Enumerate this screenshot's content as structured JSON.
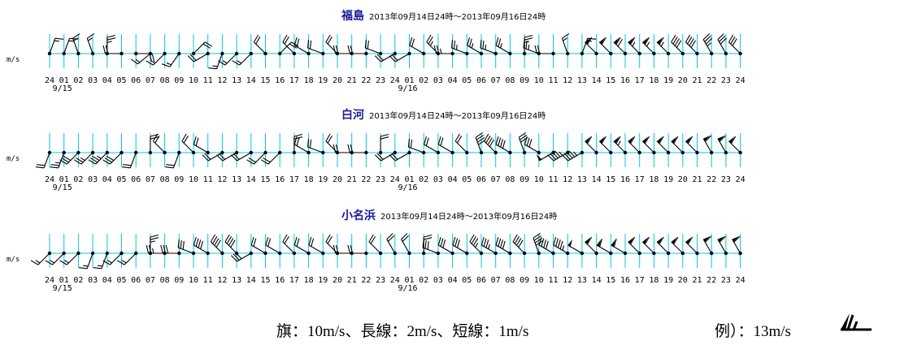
{
  "chart_data": {
    "type": "wind-barb",
    "unit": "m/s",
    "colors": {
      "grid": "#00c8e6",
      "barb": "#000000",
      "station": "#1a1a9a"
    },
    "tick_labels": [
      "24",
      "01",
      "02",
      "03",
      "04",
      "05",
      "06",
      "07",
      "08",
      "09",
      "10",
      "11",
      "12",
      "13",
      "14",
      "15",
      "16",
      "17",
      "18",
      "19",
      "20",
      "21",
      "22",
      "23",
      "24",
      "01",
      "02",
      "03",
      "04",
      "05",
      "06",
      "07",
      "08",
      "09",
      "10",
      "11",
      "12",
      "13",
      "14",
      "15",
      "16",
      "17",
      "18",
      "19",
      "20",
      "21",
      "22",
      "23",
      "24"
    ],
    "date_labels": [
      {
        "index": 1,
        "text": "9/15"
      },
      {
        "index": 25,
        "text": "9/16"
      }
    ],
    "panels": [
      {
        "station": "福島",
        "range": "2013年09月14日24時〜2013年09月16日24時",
        "dir": [
          20,
          20,
          340,
          340,
          0,
          270,
          90,
          230,
          225,
          215,
          45,
          240,
          200,
          225,
          225,
          315,
          45,
          315,
          300,
          290,
          315,
          270,
          270,
          290,
          240,
          240,
          300,
          315,
          270,
          290,
          300,
          290,
          300,
          0,
          290,
          270,
          340,
          20,
          315,
          315,
          315,
          315,
          315,
          315,
          315,
          315,
          330,
          330,
          315
        ],
        "speed": [
          3,
          3,
          3,
          3,
          5,
          4,
          4,
          3,
          3,
          3,
          4,
          4,
          3,
          3,
          3,
          4,
          4,
          4,
          4,
          4,
          4,
          4,
          4,
          4,
          4,
          4,
          4,
          5,
          5,
          5,
          5,
          5,
          5,
          5,
          5,
          4,
          3,
          3,
          12,
          12,
          14,
          13,
          13,
          13,
          8,
          8,
          7,
          6,
          6
        ]
      },
      {
        "station": "白河",
        "range": "2013年09月14日24時〜2013年09月16日24時",
        "dir": [
          200,
          200,
          225,
          225,
          225,
          225,
          200,
          0,
          315,
          200,
          315,
          300,
          240,
          240,
          240,
          225,
          225,
          0,
          300,
          290,
          315,
          270,
          270,
          0,
          240,
          240,
          290,
          300,
          300,
          315,
          340,
          315,
          300,
          340,
          300,
          240,
          240,
          240,
          315,
          315,
          315,
          315,
          315,
          315,
          315,
          315,
          330,
          330,
          315
        ],
        "speed": [
          4,
          5,
          6,
          5,
          7,
          6,
          4,
          4,
          4,
          4,
          4,
          4,
          4,
          4,
          4,
          4,
          4,
          4,
          4,
          4,
          4,
          4,
          4,
          4,
          4,
          4,
          4,
          4,
          4,
          4,
          8,
          8,
          8,
          6,
          6,
          10,
          9,
          9,
          12,
          12,
          13,
          12,
          12,
          12,
          12,
          12,
          12,
          12,
          12
        ]
      },
      {
        "station": "小名浜",
        "range": "2013年09月14日24時〜2013年09月16日24時",
        "dir": [
          225,
          225,
          225,
          200,
          200,
          225,
          225,
          0,
          270,
          270,
          290,
          300,
          315,
          315,
          240,
          300,
          300,
          315,
          300,
          300,
          315,
          270,
          270,
          315,
          330,
          330,
          0,
          290,
          300,
          300,
          315,
          300,
          300,
          315,
          340,
          300,
          300,
          300,
          315,
          300,
          300,
          315,
          315,
          315,
          315,
          315,
          330,
          330,
          330
        ],
        "speed": [
          3,
          3,
          3,
          3,
          3,
          3,
          3,
          5,
          5,
          6,
          6,
          8,
          8,
          8,
          6,
          4,
          4,
          4,
          4,
          4,
          4,
          4,
          4,
          4,
          4,
          4,
          4,
          6,
          6,
          6,
          7,
          7,
          8,
          8,
          8,
          8,
          9,
          10,
          12,
          12,
          12,
          12,
          12,
          12,
          12,
          12,
          12,
          12,
          12
        ]
      }
    ],
    "legend": {
      "text": "旗：10m/s、長線：2m/s、短線：1m/s",
      "example_label": "例）：13m/s",
      "example_speed": 13
    }
  }
}
